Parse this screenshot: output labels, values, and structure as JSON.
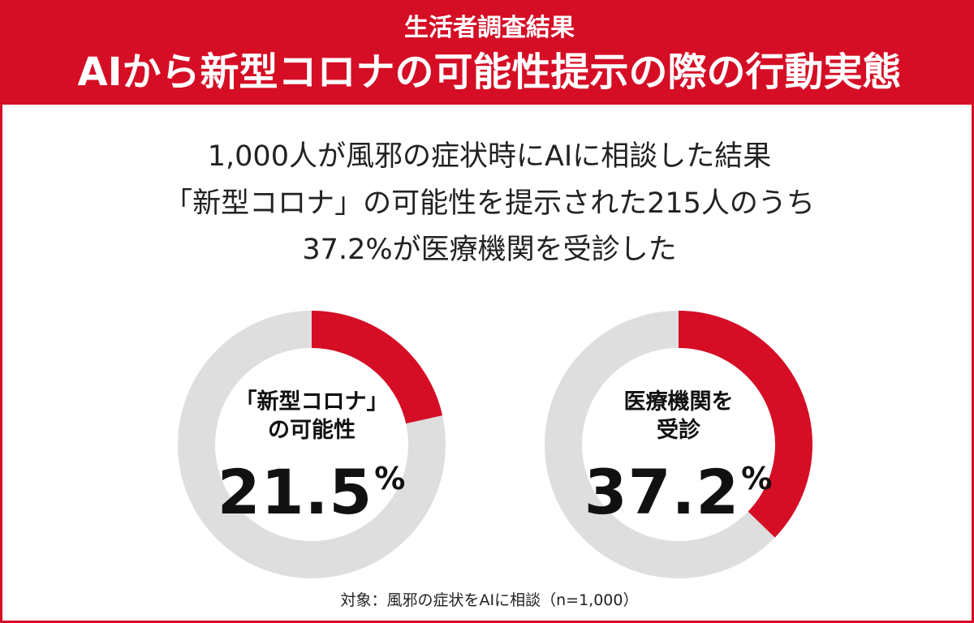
{
  "header": {
    "subtitle": "生活者調査結果",
    "title": "AIから新型コロナの可能性提示の際の行動実態"
  },
  "lead": {
    "line1": "1,000人が風邪の症状時にAIに相談した結果",
    "line2": "「新型コロナ」の可能性を提示された215人のうち",
    "line3": "37.2%が医療機関を受診した"
  },
  "footnote": "対象：風邪の症状をAIに相談（n=1,000）",
  "colors": {
    "accent": "#d50e26",
    "remainder": "#dedede"
  },
  "chart_data": [
    {
      "type": "pie",
      "label_line1": "「新型コロナ」",
      "label_line2": "の可能性",
      "value": 21.5,
      "value_text": "21.5",
      "unit": "%",
      "slices": [
        {
          "name": "「新型コロナ」の可能性",
          "value": 21.5
        },
        {
          "name": "",
          "value": 78.5
        }
      ]
    },
    {
      "type": "pie",
      "label_line1": "医療機関を",
      "label_line2": "受診",
      "value": 37.2,
      "value_text": "37.2",
      "unit": "%",
      "slices": [
        {
          "name": "医療機関を受診",
          "value": 37.2
        },
        {
          "name": "",
          "value": 62.8
        }
      ]
    }
  ]
}
